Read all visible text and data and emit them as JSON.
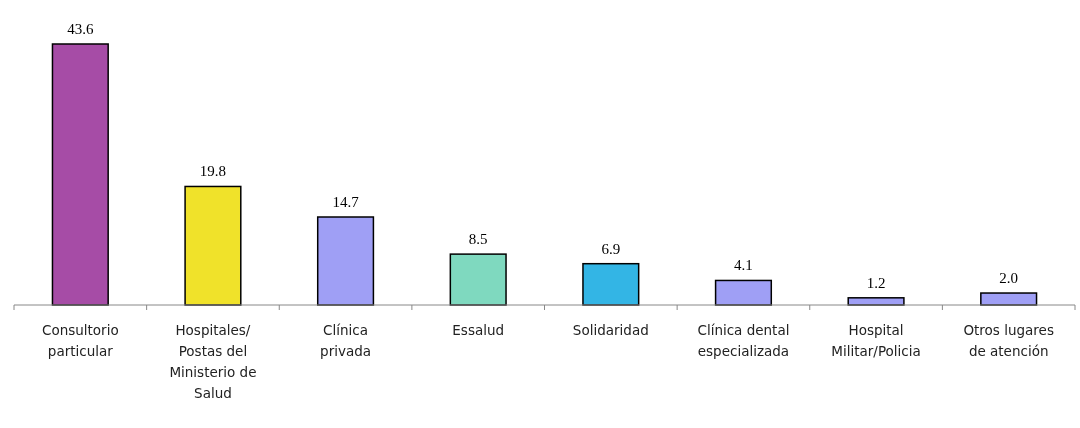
{
  "chart_data": {
    "type": "bar",
    "categories": [
      "Consultorio\nparticular",
      "Hospitales/\nPostas del\nMinisterio de\nSalud",
      "Clínica\nprivada",
      "Essalud",
      "Solidaridad",
      "Clínica dental\nespecializada",
      "Hospital\nMilitar/Policia",
      "Otros lugares\nde atención"
    ],
    "values": [
      43.6,
      19.8,
      14.7,
      8.5,
      6.9,
      4.1,
      1.2,
      2.0
    ],
    "colors": [
      "#a64ca6",
      "#f0e22a",
      "#9f9ff5",
      "#7fd9bf",
      "#33b5e5",
      "#9f9ff5",
      "#9f9ff5",
      "#9f9ff5"
    ],
    "value_labels": [
      "43.6",
      "19.8",
      "14.7",
      "8.5",
      "6.9",
      "4.1",
      "1.2",
      "2.0"
    ]
  }
}
